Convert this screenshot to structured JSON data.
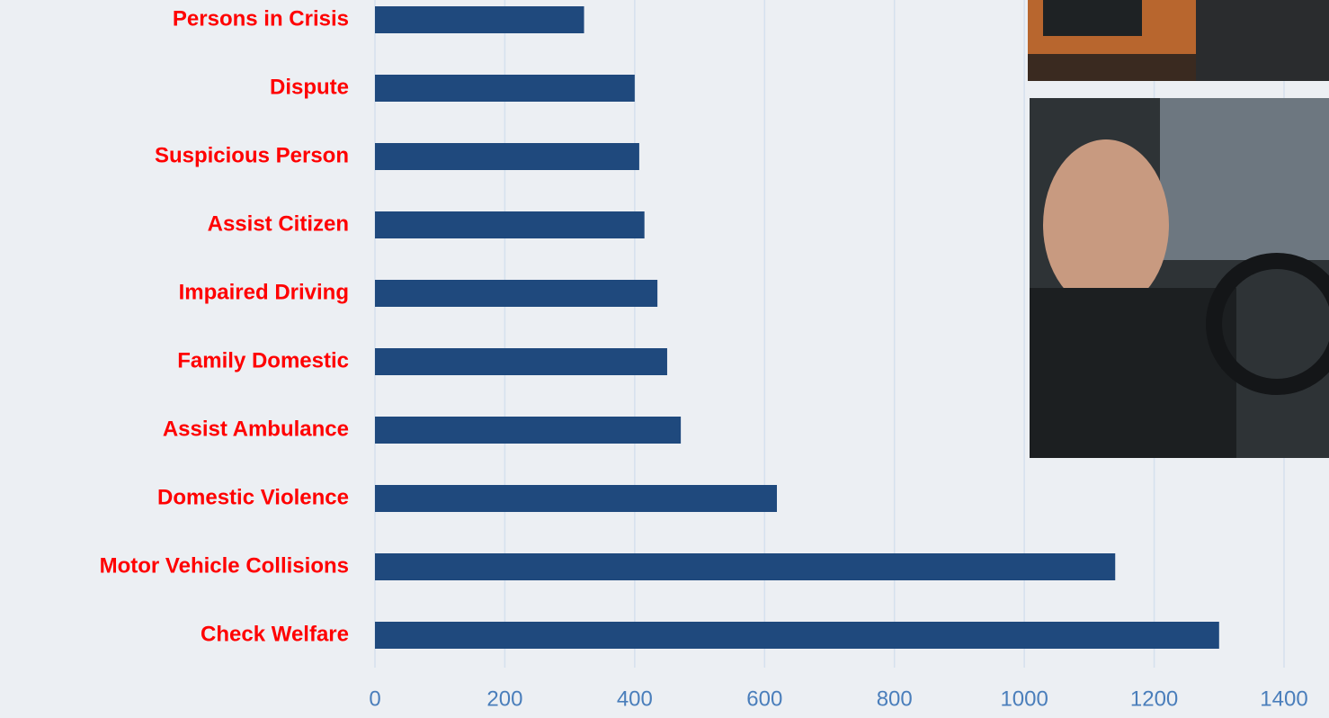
{
  "chart_data": {
    "type": "bar",
    "orientation": "horizontal",
    "categories": [
      "Persons in Crisis",
      "Dispute",
      "Suspicious Person",
      "Assist Citizen",
      "Impaired Driving",
      "Family Domestic",
      "Assist Ambulance",
      "Domestic Violence",
      "Motor Vehicle Collisions",
      "Check Welfare"
    ],
    "values": [
      322,
      400,
      407,
      415,
      435,
      450,
      471,
      619,
      1140,
      1300
    ],
    "color": "#1f497d",
    "xlim": [
      0,
      1400
    ],
    "xticks": [
      0,
      200,
      400,
      600,
      800,
      1000,
      1200,
      1400
    ],
    "grid": true
  }
}
